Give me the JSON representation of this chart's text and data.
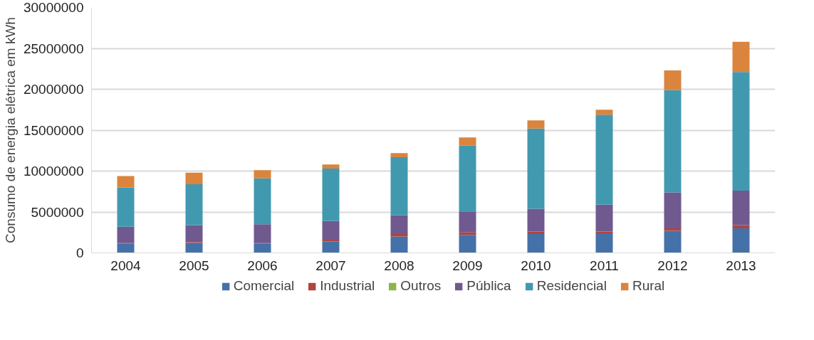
{
  "chart_data": {
    "type": "bar",
    "stacked": true,
    "ylabel": "Consumo de energia elétrica em kWh",
    "categories": [
      "2004",
      "2005",
      "2006",
      "2007",
      "2008",
      "2009",
      "2010",
      "2011",
      "2012",
      "2013"
    ],
    "series": [
      {
        "name": "Comercial",
        "color": "#4571a9",
        "values": [
          1100000,
          1200000,
          1100000,
          1400000,
          2000000,
          2200000,
          2300000,
          2400000,
          2700000,
          3000000
        ]
      },
      {
        "name": "Industrial",
        "color": "#b0443e",
        "values": [
          100000,
          100000,
          100000,
          300000,
          300000,
          300000,
          300000,
          200000,
          300000,
          400000
        ]
      },
      {
        "name": "Outros",
        "color": "#8db44a",
        "values": [
          0,
          0,
          0,
          0,
          0,
          0,
          0,
          0,
          0,
          0
        ]
      },
      {
        "name": "Pública",
        "color": "#70598f",
        "values": [
          2000000,
          2100000,
          2300000,
          2200000,
          2300000,
          2500000,
          2800000,
          3300000,
          4400000,
          4200000
        ]
      },
      {
        "name": "Residencial",
        "color": "#4199b0",
        "values": [
          4800000,
          5000000,
          5600000,
          6400000,
          7100000,
          8100000,
          9800000,
          11000000,
          12500000,
          14500000
        ]
      },
      {
        "name": "Rural",
        "color": "#db843d",
        "values": [
          1400000,
          1400000,
          1000000,
          500000,
          500000,
          1000000,
          1000000,
          600000,
          2400000,
          3700000
        ]
      }
    ],
    "ylim": [
      0,
      30000000
    ],
    "yticks": [
      0,
      5000000,
      10000000,
      15000000,
      20000000,
      25000000,
      30000000
    ],
    "grid": "y",
    "legend": "bottom"
  }
}
